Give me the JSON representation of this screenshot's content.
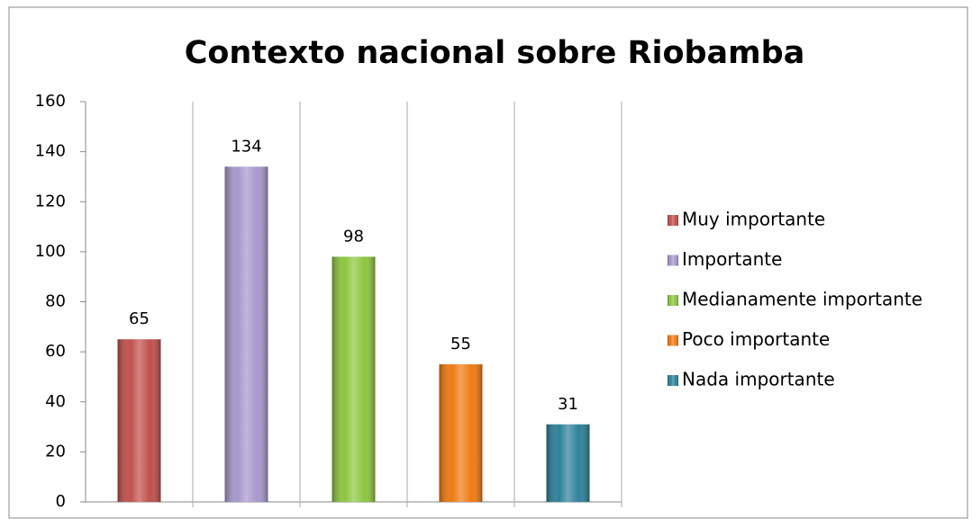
{
  "chart_data": {
    "type": "bar",
    "title": "Contexto nacional sobre Riobamba",
    "series": [
      {
        "name": "Muy importante",
        "color": "#c0504d",
        "values": [
          65
        ]
      },
      {
        "name": "Importante",
        "color": "#a797cc",
        "values": [
          134
        ]
      },
      {
        "name": "Medianamente importante",
        "color": "#8cc63f",
        "values": [
          98
        ]
      },
      {
        "name": "Poco importante",
        "color": "#f07a12",
        "values": [
          55
        ]
      },
      {
        "name": "Nada importante",
        "color": "#2e8199",
        "values": [
          31
        ]
      }
    ],
    "ylim": [
      0,
      160
    ],
    "yticks": [
      0,
      20,
      40,
      60,
      80,
      100,
      120,
      140,
      160
    ],
    "legend": "right",
    "data_labels": true
  }
}
